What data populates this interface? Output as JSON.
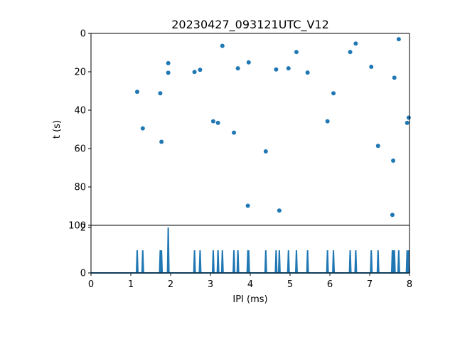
{
  "chart_data": [
    {
      "type": "scatter",
      "title": "20230427_093121UTC_V12",
      "xlabel": "",
      "ylabel": "t (s)",
      "xlim": [
        0,
        8
      ],
      "ylim": [
        100,
        0
      ],
      "y_inverted": true,
      "yticks": [
        "0",
        "20",
        "40",
        "60",
        "80",
        "100"
      ],
      "color": "#1f77b4",
      "points": [
        {
          "x": 1.16,
          "y": 30.4
        },
        {
          "x": 1.3,
          "y": 49.5
        },
        {
          "x": 1.74,
          "y": 31.2
        },
        {
          "x": 1.77,
          "y": 56.5
        },
        {
          "x": 1.94,
          "y": 15.5
        },
        {
          "x": 1.94,
          "y": 20.5
        },
        {
          "x": 2.6,
          "y": 20.1
        },
        {
          "x": 2.74,
          "y": 19.0
        },
        {
          "x": 3.07,
          "y": 45.8
        },
        {
          "x": 3.19,
          "y": 46.6
        },
        {
          "x": 3.3,
          "y": 6.5
        },
        {
          "x": 3.59,
          "y": 51.7
        },
        {
          "x": 3.69,
          "y": 18.2
        },
        {
          "x": 3.94,
          "y": 89.8
        },
        {
          "x": 3.96,
          "y": 15.1
        },
        {
          "x": 4.39,
          "y": 61.5
        },
        {
          "x": 4.65,
          "y": 18.8
        },
        {
          "x": 4.73,
          "y": 92.3
        },
        {
          "x": 4.96,
          "y": 18.2
        },
        {
          "x": 5.16,
          "y": 9.7
        },
        {
          "x": 5.44,
          "y": 20.4
        },
        {
          "x": 5.94,
          "y": 45.8
        },
        {
          "x": 6.09,
          "y": 31.2
        },
        {
          "x": 6.51,
          "y": 9.7
        },
        {
          "x": 6.65,
          "y": 5.3
        },
        {
          "x": 7.04,
          "y": 17.4
        },
        {
          "x": 7.21,
          "y": 58.6
        },
        {
          "x": 7.57,
          "y": 94.6
        },
        {
          "x": 7.59,
          "y": 66.3
        },
        {
          "x": 7.62,
          "y": 23.1
        },
        {
          "x": 7.73,
          "y": 3.0
        },
        {
          "x": 7.94,
          "y": 46.6
        },
        {
          "x": 7.98,
          "y": 43.9
        }
      ]
    },
    {
      "type": "line",
      "title": "",
      "xlabel": "IPI (ms)",
      "ylabel": "",
      "xlim": [
        0,
        8
      ],
      "ylim": [
        0,
        2.1
      ],
      "xticks": [
        "0",
        "1",
        "2",
        "3",
        "4",
        "5",
        "6",
        "7",
        "8"
      ],
      "yticks": [
        "0",
        "2"
      ],
      "color": "#1f77b4",
      "spikes": [
        {
          "x": 1.16,
          "y": 1
        },
        {
          "x": 1.3,
          "y": 1
        },
        {
          "x": 1.74,
          "y": 1
        },
        {
          "x": 1.77,
          "y": 1
        },
        {
          "x": 1.94,
          "y": 2
        },
        {
          "x": 2.6,
          "y": 1
        },
        {
          "x": 2.74,
          "y": 1
        },
        {
          "x": 3.07,
          "y": 1
        },
        {
          "x": 3.19,
          "y": 1
        },
        {
          "x": 3.3,
          "y": 1
        },
        {
          "x": 3.59,
          "y": 1
        },
        {
          "x": 3.69,
          "y": 1
        },
        {
          "x": 3.94,
          "y": 1
        },
        {
          "x": 3.96,
          "y": 1
        },
        {
          "x": 4.39,
          "y": 1
        },
        {
          "x": 4.65,
          "y": 1
        },
        {
          "x": 4.73,
          "y": 1
        },
        {
          "x": 4.96,
          "y": 1
        },
        {
          "x": 5.16,
          "y": 1
        },
        {
          "x": 5.44,
          "y": 1
        },
        {
          "x": 5.94,
          "y": 1
        },
        {
          "x": 6.09,
          "y": 1
        },
        {
          "x": 6.51,
          "y": 1
        },
        {
          "x": 6.65,
          "y": 1
        },
        {
          "x": 7.04,
          "y": 1
        },
        {
          "x": 7.21,
          "y": 1
        },
        {
          "x": 7.57,
          "y": 1
        },
        {
          "x": 7.59,
          "y": 1
        },
        {
          "x": 7.62,
          "y": 1
        },
        {
          "x": 7.73,
          "y": 1
        },
        {
          "x": 7.94,
          "y": 1
        },
        {
          "x": 7.98,
          "y": 1
        }
      ]
    }
  ]
}
